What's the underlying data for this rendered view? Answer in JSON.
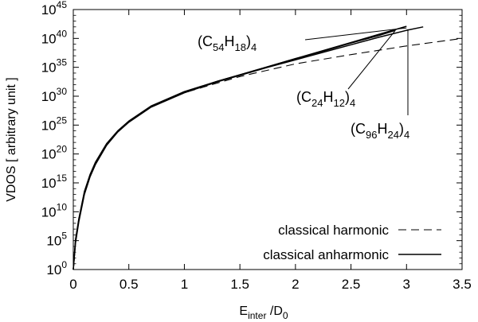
{
  "chart_data": {
    "type": "line",
    "title": "",
    "xlabel": "E_inter /D_0",
    "xlabel_parts": {
      "main": "E",
      "sub": "inter",
      "rest": " /D",
      "sub2": "0"
    },
    "ylabel": "VDOS  [ arbitrary unit ]",
    "xlim": [
      0,
      3.5
    ],
    "ylim_log10": [
      0,
      45
    ],
    "yscale": "log",
    "grid": false,
    "legend_position": "bottom-right",
    "x_ticks": [
      {
        "value": 0,
        "label": "0"
      },
      {
        "value": 0.5,
        "label": "0.5"
      },
      {
        "value": 1,
        "label": "1"
      },
      {
        "value": 1.5,
        "label": "1.5"
      },
      {
        "value": 2,
        "label": "2"
      },
      {
        "value": 2.5,
        "label": "2.5"
      },
      {
        "value": 3,
        "label": "3"
      },
      {
        "value": 3.5,
        "label": "3.5"
      }
    ],
    "y_ticks": [
      {
        "exp": 0,
        "base": "10",
        "sup": "0"
      },
      {
        "exp": 5,
        "base": "10",
        "sup": "5"
      },
      {
        "exp": 10,
        "base": "10",
        "sup": "10"
      },
      {
        "exp": 15,
        "base": "10",
        "sup": "15"
      },
      {
        "exp": 20,
        "base": "10",
        "sup": "20"
      },
      {
        "exp": 25,
        "base": "10",
        "sup": "25"
      },
      {
        "exp": 30,
        "base": "10",
        "sup": "30"
      },
      {
        "exp": 35,
        "base": "10",
        "sup": "35"
      },
      {
        "exp": 40,
        "base": "10",
        "sup": "40"
      },
      {
        "exp": 45,
        "base": "10",
        "sup": "45"
      }
    ],
    "legend": [
      {
        "label": "classical harmonic",
        "style": "dashed"
      },
      {
        "label": "classical anharmonic",
        "style": "solid"
      }
    ],
    "series": [
      {
        "style": "dashed",
        "x": [
          0.0,
          0.02,
          0.05,
          0.1,
          0.15,
          0.2,
          0.3,
          0.4,
          0.5,
          0.7,
          1.0,
          1.3,
          1.5,
          2.0,
          2.5,
          3.0,
          3.5
        ],
        "log10_y": [
          0.0,
          5.0,
          8.6,
          13.3,
          16.2,
          18.4,
          21.6,
          23.9,
          25.6,
          28.1,
          30.6,
          32.3,
          33.4,
          35.6,
          37.2,
          38.7,
          40.0
        ]
      },
      {
        "name": "(C24H12)4",
        "style": "solid",
        "x": [
          0.0,
          0.02,
          0.05,
          0.1,
          0.15,
          0.2,
          0.3,
          0.4,
          0.5,
          0.7,
          1.0,
          1.3,
          1.5,
          1.75,
          2.0,
          2.25,
          2.5,
          2.75,
          2.9
        ],
        "log10_y": [
          0.0,
          5.0,
          8.6,
          13.3,
          16.2,
          18.4,
          21.7,
          23.9,
          25.6,
          28.2,
          30.7,
          32.6,
          33.7,
          35.1,
          36.5,
          37.8,
          39.2,
          40.5,
          41.4
        ]
      },
      {
        "name": "(C54H18)4",
        "style": "solid",
        "x": [
          0.0,
          0.02,
          0.05,
          0.1,
          0.15,
          0.2,
          0.3,
          0.4,
          0.5,
          0.7,
          1.0,
          1.3,
          1.5,
          1.75,
          2.0,
          2.25,
          2.5,
          2.75,
          3.0
        ],
        "log10_y": [
          0.0,
          5.2,
          8.8,
          13.5,
          16.4,
          18.6,
          21.8,
          24.0,
          25.7,
          28.3,
          30.8,
          32.6,
          33.7,
          35.1,
          36.5,
          37.9,
          39.3,
          40.7,
          42.1
        ]
      },
      {
        "name": "(C96H24)4",
        "style": "solid",
        "x": [
          0.0,
          0.02,
          0.05,
          0.1,
          0.15,
          0.2,
          0.3,
          0.4,
          0.5,
          0.7,
          1.0,
          1.3,
          1.5,
          1.75,
          2.0,
          2.25,
          2.5,
          2.75,
          3.0,
          3.15
        ],
        "log10_y": [
          0.0,
          4.6,
          8.3,
          13.0,
          16.0,
          18.2,
          21.5,
          23.8,
          25.5,
          28.1,
          30.6,
          32.5,
          33.6,
          35.0,
          36.3,
          37.6,
          38.9,
          40.2,
          41.4,
          42.0
        ]
      }
    ],
    "annotations": [
      {
        "text_main": "(C",
        "sub1": "54",
        "mid": "H",
        "sub2": "18",
        "close": ")",
        "sub3": "4"
      },
      {
        "text_main": "(C",
        "sub1": "24",
        "mid": "H",
        "sub2": "12",
        "close": ")",
        "sub3": "4"
      },
      {
        "text_main": "(C",
        "sub1": "96",
        "mid": "H",
        "sub2": "24",
        "close": ")",
        "sub3": "4"
      }
    ]
  }
}
